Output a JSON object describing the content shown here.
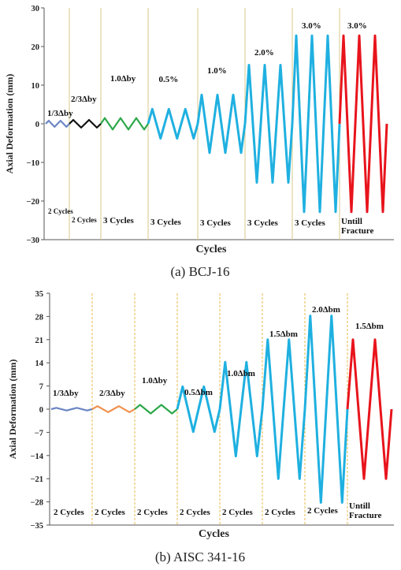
{
  "chart_data": [
    {
      "type": "line",
      "xlabel": "Cycles",
      "ylabel": "Axial Deformation (mm)",
      "ylim": [
        -30,
        30
      ],
      "yticks": [
        30,
        20,
        10,
        0,
        -10,
        -20,
        -30
      ],
      "caption": "(a) BCJ-16",
      "grid": false,
      "divider_color": "#d6c98a",
      "segments": [
        {
          "stage": "1/3Δby",
          "cycles_label": "2 Cycles",
          "cycles": 2,
          "amplitude": 0.8,
          "color": "#6c86c4",
          "cycle_width": 15
        },
        {
          "stage": "2/3Δby",
          "cycles_label": "2 Cycles",
          "cycles": 2,
          "amplitude": 1.0,
          "color": "#111111",
          "cycle_width": 20
        },
        {
          "stage": "1.0Δby",
          "cycles_label": "3 Cycles",
          "cycles": 3,
          "amplitude": 1.5,
          "color": "#2ea84a",
          "cycle_width": 20
        },
        {
          "stage": "0.5%",
          "cycles_label": "3 Cycles",
          "cycles": 3,
          "amplitude": 3.8,
          "color": "#1fb0e0",
          "cycle_width": 21
        },
        {
          "stage": "1.0%",
          "cycles_label": "3 Cycles",
          "cycles": 3,
          "amplitude": 7.5,
          "color": "#1fb0e0",
          "cycle_width": 20
        },
        {
          "stage": "2.0%",
          "cycles_label": "3 Cycles",
          "cycles": 3,
          "amplitude": 15.2,
          "color": "#1fb0e0",
          "cycle_width": 20
        },
        {
          "stage": "3.0%",
          "cycles_label": "3 Cycles",
          "cycles": 3,
          "amplitude": 22.8,
          "color": "#1fb0e0",
          "cycle_width": 20
        },
        {
          "stage": "3.0%",
          "cycles_label": "Untill Fracture",
          "cycles": 3,
          "amplitude": 22.8,
          "color": "#e8141c",
          "cycle_width": 20
        }
      ]
    },
    {
      "type": "line",
      "xlabel": "Cycles",
      "ylabel": "Axial Deformation (mm)",
      "ylim": [
        -35,
        35
      ],
      "yticks": [
        35,
        28,
        21,
        14,
        7,
        0,
        -7,
        -14,
        -21,
        -28,
        -35
      ],
      "caption": "(b) AISC 341-16",
      "grid": false,
      "divider_color": "#e8b84a",
      "segments": [
        {
          "stage": "1/3Δby",
          "cycles_label": "2 Cycles",
          "cycles": 2,
          "amplitude": 0.4,
          "color": "#6c86c4",
          "cycle_width": 26
        },
        {
          "stage": "2/3Δby",
          "cycles_label": "2 Cycles",
          "cycles": 2,
          "amplitude": 0.9,
          "color": "#f0914e",
          "cycle_width": 27
        },
        {
          "stage": "1.0Δby",
          "cycles_label": "2 Cycles",
          "cycles": 2,
          "amplitude": 1.3,
          "color": "#2ea84a",
          "cycle_width": 27
        },
        {
          "stage": "0.5Δbm",
          "cycles_label": "2 Cycles",
          "cycles": 2,
          "amplitude": 6.8,
          "color": "#1fb0e0",
          "cycle_width": 27
        },
        {
          "stage": "1.0Δbm",
          "cycles_label": "2 Cycles",
          "cycles": 2,
          "amplitude": 14.2,
          "color": "#1fb0e0",
          "cycle_width": 27
        },
        {
          "stage": "1.5Δbm",
          "cycles_label": "2 Cycles",
          "cycles": 2,
          "amplitude": 21.0,
          "color": "#1fb0e0",
          "cycle_width": 27
        },
        {
          "stage": "2.0Δbm",
          "cycles_label": "2 Cycles",
          "cycles": 2,
          "amplitude": 28.2,
          "color": "#1fb0e0",
          "cycle_width": 27
        },
        {
          "stage": "1.5Δbm",
          "cycles_label": "Untill Fracture",
          "cycles": 2,
          "amplitude": 21.0,
          "color": "#e8141c",
          "cycle_width": 28
        }
      ]
    }
  ]
}
